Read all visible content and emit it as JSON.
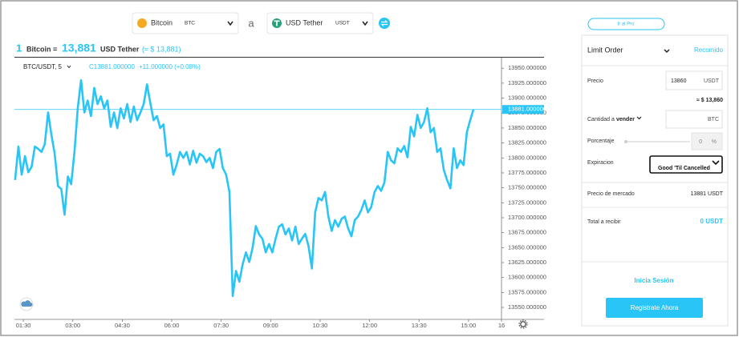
{
  "pair": {
    "from_name": "Bitcoin",
    "from_code": "BTC",
    "connector": "a",
    "to_name": "USD Tether",
    "to_code": "USDT"
  },
  "rate": {
    "amount": "1",
    "from": "Bitcoin",
    "eq": "=",
    "value": "13,881",
    "to": "USD Tether",
    "approx": "(≈ $ 13,881)"
  },
  "chart": {
    "type": "line",
    "symbol": "BTC/USDT, 5",
    "close": "C13881.000000",
    "change": "+11.000000 (+0.08%)",
    "price_label": "13881.000000",
    "color": "#29c5f6",
    "x": [
      1.25,
      1.35,
      1.45,
      1.55,
      1.65,
      1.75,
      1.85,
      1.95,
      2.05,
      2.15,
      2.25,
      2.35,
      2.45,
      2.55,
      2.65,
      2.75,
      2.85,
      2.95,
      3.05,
      3.15,
      3.25,
      3.35,
      3.45,
      3.55,
      3.65,
      3.75,
      3.85,
      3.95,
      4.05,
      4.15,
      4.25,
      4.35,
      4.45,
      4.55,
      4.65,
      4.75,
      4.85,
      4.95,
      5.05,
      5.15,
      5.25,
      5.35,
      5.45,
      5.55,
      5.65,
      5.75,
      5.85,
      5.95,
      6.05,
      6.15,
      6.25,
      6.35,
      6.45,
      6.55,
      6.65,
      6.75,
      6.85,
      6.95,
      7.05,
      7.15,
      7.25,
      7.35,
      7.45,
      7.55,
      7.65,
      7.75,
      7.85,
      7.95,
      8.05,
      8.15,
      8.25,
      8.35,
      8.45,
      8.55,
      8.65,
      8.75,
      8.85,
      8.95,
      9.05,
      9.15,
      9.25,
      9.35,
      9.45,
      9.55,
      9.65,
      9.75,
      9.85,
      9.95,
      10.05,
      10.15,
      10.25,
      10.35,
      10.45,
      10.55,
      10.65,
      10.75,
      10.85,
      10.95,
      11.05,
      11.15,
      11.25,
      11.35,
      11.45,
      11.55,
      11.65,
      11.75,
      11.85,
      11.95,
      12.05,
      12.15,
      12.25,
      12.35,
      12.45,
      12.55,
      12.65,
      12.75,
      12.85,
      12.95,
      13.05,
      13.15,
      13.25,
      13.35,
      13.45,
      13.55,
      13.65,
      13.75,
      13.85,
      13.95,
      14.05,
      14.15,
      14.25,
      14.35,
      14.45,
      14.55,
      14.65,
      14.75,
      14.85,
      14.95,
      15.05,
      15.15
    ],
    "values": [
      13763,
      13819,
      13772,
      13803,
      13776,
      13785,
      13819,
      13815,
      13810,
      13823,
      13876,
      13839,
      13807,
      13753,
      13748,
      13705,
      13769,
      13756,
      13810,
      13883,
      13930,
      13876,
      13896,
      13870,
      13917,
      13890,
      13903,
      13883,
      13896,
      13852,
      13876,
      13850,
      13883,
      13866,
      13890,
      13860,
      13886,
      13863,
      13876,
      13890,
      13923,
      13892,
      13863,
      13870,
      13850,
      13856,
      13803,
      13807,
      13772,
      13789,
      13810,
      13800,
      13810,
      13789,
      13812,
      13792,
      13807,
      13803,
      13793,
      13800,
      13783,
      13810,
      13815,
      13783,
      13772,
      13743,
      13569,
      13611,
      13593,
      13622,
      13642,
      13626,
      13649,
      13686,
      13672,
      13665,
      13642,
      13656,
      13642,
      13665,
      13685,
      13689,
      13672,
      13682,
      13662,
      13685,
      13656,
      13665,
      13673,
      13652,
      13615,
      13709,
      13733,
      13729,
      13743,
      13702,
      13678,
      13696,
      13685,
      13698,
      13702,
      13682,
      13669,
      13696,
      13702,
      13713,
      13729,
      13709,
      13718,
      13743,
      13753,
      13745,
      13759,
      13810,
      13796,
      13791,
      13816,
      13810,
      13820,
      13801,
      13852,
      13836,
      13872,
      13850,
      13860,
      13883,
      13843,
      13850,
      13810,
      13816,
      13780,
      13763,
      13749,
      13816,
      13783,
      13796,
      13788,
      13843,
      13863,
      13881
    ],
    "xlim": [
      1.23,
      16
    ],
    "xticks": [
      {
        "value": 1.5,
        "label": "01:30"
      },
      {
        "value": 3,
        "label": "03:00"
      },
      {
        "value": 4.5,
        "label": "04:30"
      },
      {
        "value": 6,
        "label": "06:00"
      },
      {
        "value": 7.5,
        "label": "07:30"
      },
      {
        "value": 9,
        "label": "09:00"
      },
      {
        "value": 10.5,
        "label": "10:30"
      },
      {
        "value": 12,
        "label": "12:00"
      },
      {
        "value": 13.5,
        "label": "13:30"
      },
      {
        "value": 15,
        "label": "15:00"
      },
      16
    ],
    "ylim": [
      13530,
      13965
    ],
    "yticks": [
      {
        "value": 13550,
        "label": "13550.000000"
      },
      {
        "value": 13575,
        "label": "13575.000000"
      },
      {
        "value": 13600,
        "label": "13600.000000"
      },
      {
        "value": 13625,
        "label": "13625.000000"
      },
      {
        "value": 13650,
        "label": "13650.000000"
      },
      {
        "value": 13675,
        "label": "13675.000000"
      },
      {
        "value": 13700,
        "label": "13700.000000"
      },
      {
        "value": 13725,
        "label": "13725.000000"
      },
      {
        "value": 13750,
        "label": "13750.000000"
      },
      {
        "value": 13775,
        "label": "13775.000000"
      },
      {
        "value": 13800,
        "label": "13800.000000"
      },
      {
        "value": 13825,
        "label": "13825.000000"
      },
      {
        "value": 13850,
        "label": "13850.000000"
      },
      {
        "value": 13875,
        "label": "13875.000000"
      },
      {
        "value": 13900,
        "label": "13900.000000"
      },
      {
        "value": 13925,
        "label": "13925.000000"
      },
      {
        "value": 13950,
        "label": "13950.000000"
      }
    ]
  },
  "order": {
    "pro": "Ir al Pro",
    "type": "Limit Order",
    "recommended": "Recomido",
    "price_label": "Precio",
    "price": "13860",
    "price_unit": "USDT",
    "price_usd": "≈ $ 13,860",
    "amount_label": "Cantidad a",
    "side": "vender",
    "amount_unit": "BTC",
    "percent_label": "Porcentaje",
    "percent": "0",
    "percent_unit": "%",
    "expiry_label": "Expiracion",
    "expiry": "Good 'Til Cancelled",
    "market_label": "Precio de mercado",
    "market": "13881 USDT",
    "total_label": "Total a recibir",
    "total": "0 USDT",
    "login": "Inicia Sesión",
    "register": "Registrate Ahora"
  }
}
